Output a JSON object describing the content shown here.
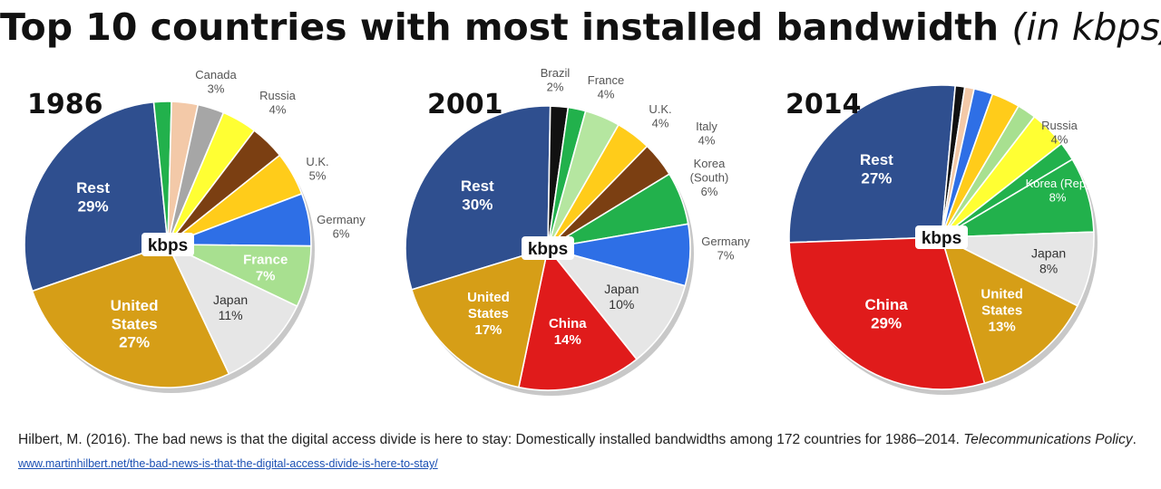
{
  "title": {
    "main": "Top 10 countries with most installed bandwidth",
    "unit": "(in kbps)"
  },
  "chart_data": [
    {
      "type": "pie",
      "title": "1986",
      "center_label": "kbps",
      "slices": [
        {
          "name": "Rest",
          "value": 29,
          "label": "29%",
          "color": "#2f4f8f"
        },
        {
          "name": "",
          "value": 2,
          "label": "",
          "color": "#22b14c"
        },
        {
          "name": "Canada",
          "value": 3,
          "label": "3%",
          "color": "#f3c9a8"
        },
        {
          "name": "",
          "value": 3,
          "label": "",
          "color": "#a6a6a6"
        },
        {
          "name": "Russia",
          "value": 4,
          "label": "4%",
          "color": "#ffff33"
        },
        {
          "name": "",
          "value": 4,
          "label": "",
          "color": "#7b3f12"
        },
        {
          "name": "U.K.",
          "value": 5,
          "label": "5%",
          "color": "#ffcc1a"
        },
        {
          "name": "Germany",
          "value": 6,
          "label": "6%",
          "color": "#2e6fe6"
        },
        {
          "name": "France",
          "value": 7,
          "label": "7%",
          "color": "#a8e090"
        },
        {
          "name": "Japan",
          "value": 11,
          "label": "11%",
          "color": "#e6e6e6"
        },
        {
          "name": "United States",
          "value": 27,
          "label": "27%",
          "color": "#d69e17"
        }
      ]
    },
    {
      "type": "pie",
      "title": "2001",
      "center_label": "kbps",
      "slices": [
        {
          "name": "Rest",
          "value": 30,
          "label": "30%",
          "color": "#2f4f8f"
        },
        {
          "name": "",
          "value": 2,
          "label": "",
          "color": "#111111"
        },
        {
          "name": "Brazil",
          "value": 2,
          "label": "2%",
          "color": "#22b14c"
        },
        {
          "name": "France",
          "value": 4,
          "label": "4%",
          "color": "#b5e6a0"
        },
        {
          "name": "U.K.",
          "value": 4,
          "label": "4%",
          "color": "#ffcc1a"
        },
        {
          "name": "Italy",
          "value": 4,
          "label": "4%",
          "color": "#7b3f12"
        },
        {
          "name": "Korea (South)",
          "value": 6,
          "label": "6%",
          "color": "#22b14c"
        },
        {
          "name": "Germany",
          "value": 7,
          "label": "7%",
          "color": "#2e6fe6"
        },
        {
          "name": "Japan",
          "value": 10,
          "label": "10%",
          "color": "#e6e6e6"
        },
        {
          "name": "China",
          "value": 14,
          "label": "14%",
          "color": "#e01b1b"
        },
        {
          "name": "United States",
          "value": 17,
          "label": "17%",
          "color": "#d69e17"
        }
      ]
    },
    {
      "type": "pie",
      "title": "2014",
      "center_label": "kbps",
      "slices": [
        {
          "name": "Rest",
          "value": 27,
          "label": "27%",
          "color": "#2f4f8f"
        },
        {
          "name": "",
          "value": 1,
          "label": "",
          "color": "#111111"
        },
        {
          "name": "",
          "value": 1,
          "label": "",
          "color": "#f3c9a8"
        },
        {
          "name": "",
          "value": 2,
          "label": "",
          "color": "#2e6fe6"
        },
        {
          "name": "",
          "value": 3,
          "label": "",
          "color": "#ffcc1a"
        },
        {
          "name": "",
          "value": 2,
          "label": "",
          "color": "#a8e090"
        },
        {
          "name": "Russia",
          "value": 4,
          "label": "4%",
          "color": "#ffff33"
        },
        {
          "name": "",
          "value": 2,
          "label": "",
          "color": "#22b14c"
        },
        {
          "name": "Korea (Rep)",
          "value": 8,
          "label": "8%",
          "color": "#22b14c"
        },
        {
          "name": "Japan",
          "value": 8,
          "label": "8%",
          "color": "#e6e6e6"
        },
        {
          "name": "United States",
          "value": 13,
          "label": "13%",
          "color": "#d69e17"
        },
        {
          "name": "China",
          "value": 29,
          "label": "29%",
          "color": "#e01b1b"
        }
      ]
    }
  ],
  "footer": {
    "citation": "Hilbert, M. (2016). The bad news is that the digital access divide is here to stay: Domestically installed bandwidths among 172 countries for 1986–2014.",
    "journal": "Telecommunications Policy",
    "period": ".",
    "link": "www.martinhilbert.net/the-bad-news-is-that-the-digital-access-divide-is-here-to-stay/"
  }
}
